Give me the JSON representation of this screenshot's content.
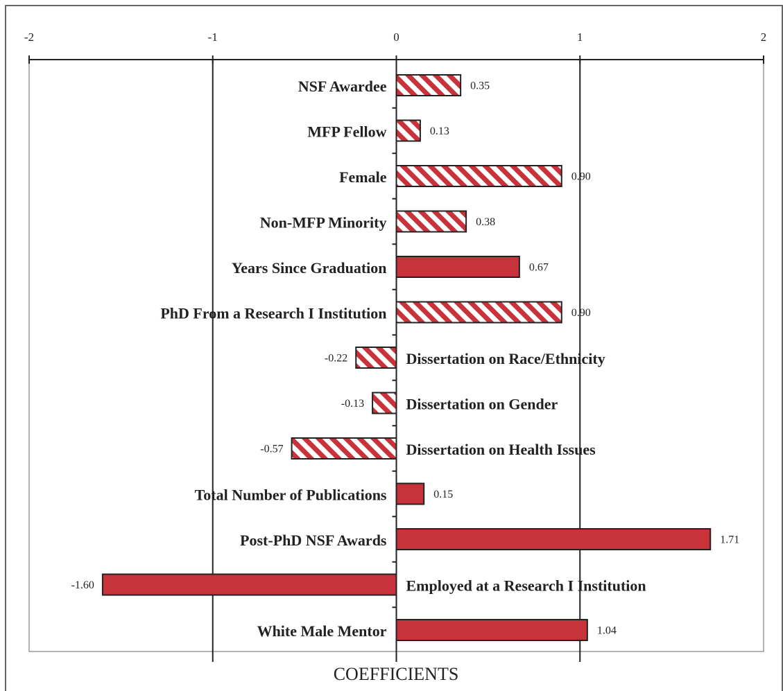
{
  "chart_data": {
    "type": "barh",
    "categories": [
      "NSF Awardee",
      "MFP Fellow",
      "Female",
      "Non-MFP Minority",
      "Years Since Graduation",
      "PhD From a Research I Institution",
      "Dissertation on Race/Ethnicity",
      "Dissertation on Gender",
      "Dissertation on Health Issues",
      "Total Number of Publications",
      "Post-PhD NSF Awards",
      "Employed at a Research I Institution",
      "White Male Mentor"
    ],
    "values": [
      0.35,
      0.13,
      0.9,
      0.38,
      0.67,
      0.9,
      -0.22,
      -0.13,
      -0.57,
      0.15,
      1.71,
      -1.6,
      1.04
    ],
    "value_labels": [
      "0.35",
      "0.13",
      "0.90",
      "0.38",
      "0.67",
      "0.90",
      "-0.22",
      "-0.13",
      "-0.57",
      "0.15",
      "1.71",
      "-1.60",
      "1.04"
    ],
    "hatched": [
      true,
      true,
      true,
      true,
      false,
      true,
      true,
      true,
      true,
      false,
      false,
      false,
      false
    ],
    "color": "#c8323a",
    "xlabel": "COEFFICIENTS",
    "xlim": [
      -2,
      2
    ],
    "xticks": [
      -2,
      -1,
      0,
      1,
      2
    ],
    "grid": true
  }
}
